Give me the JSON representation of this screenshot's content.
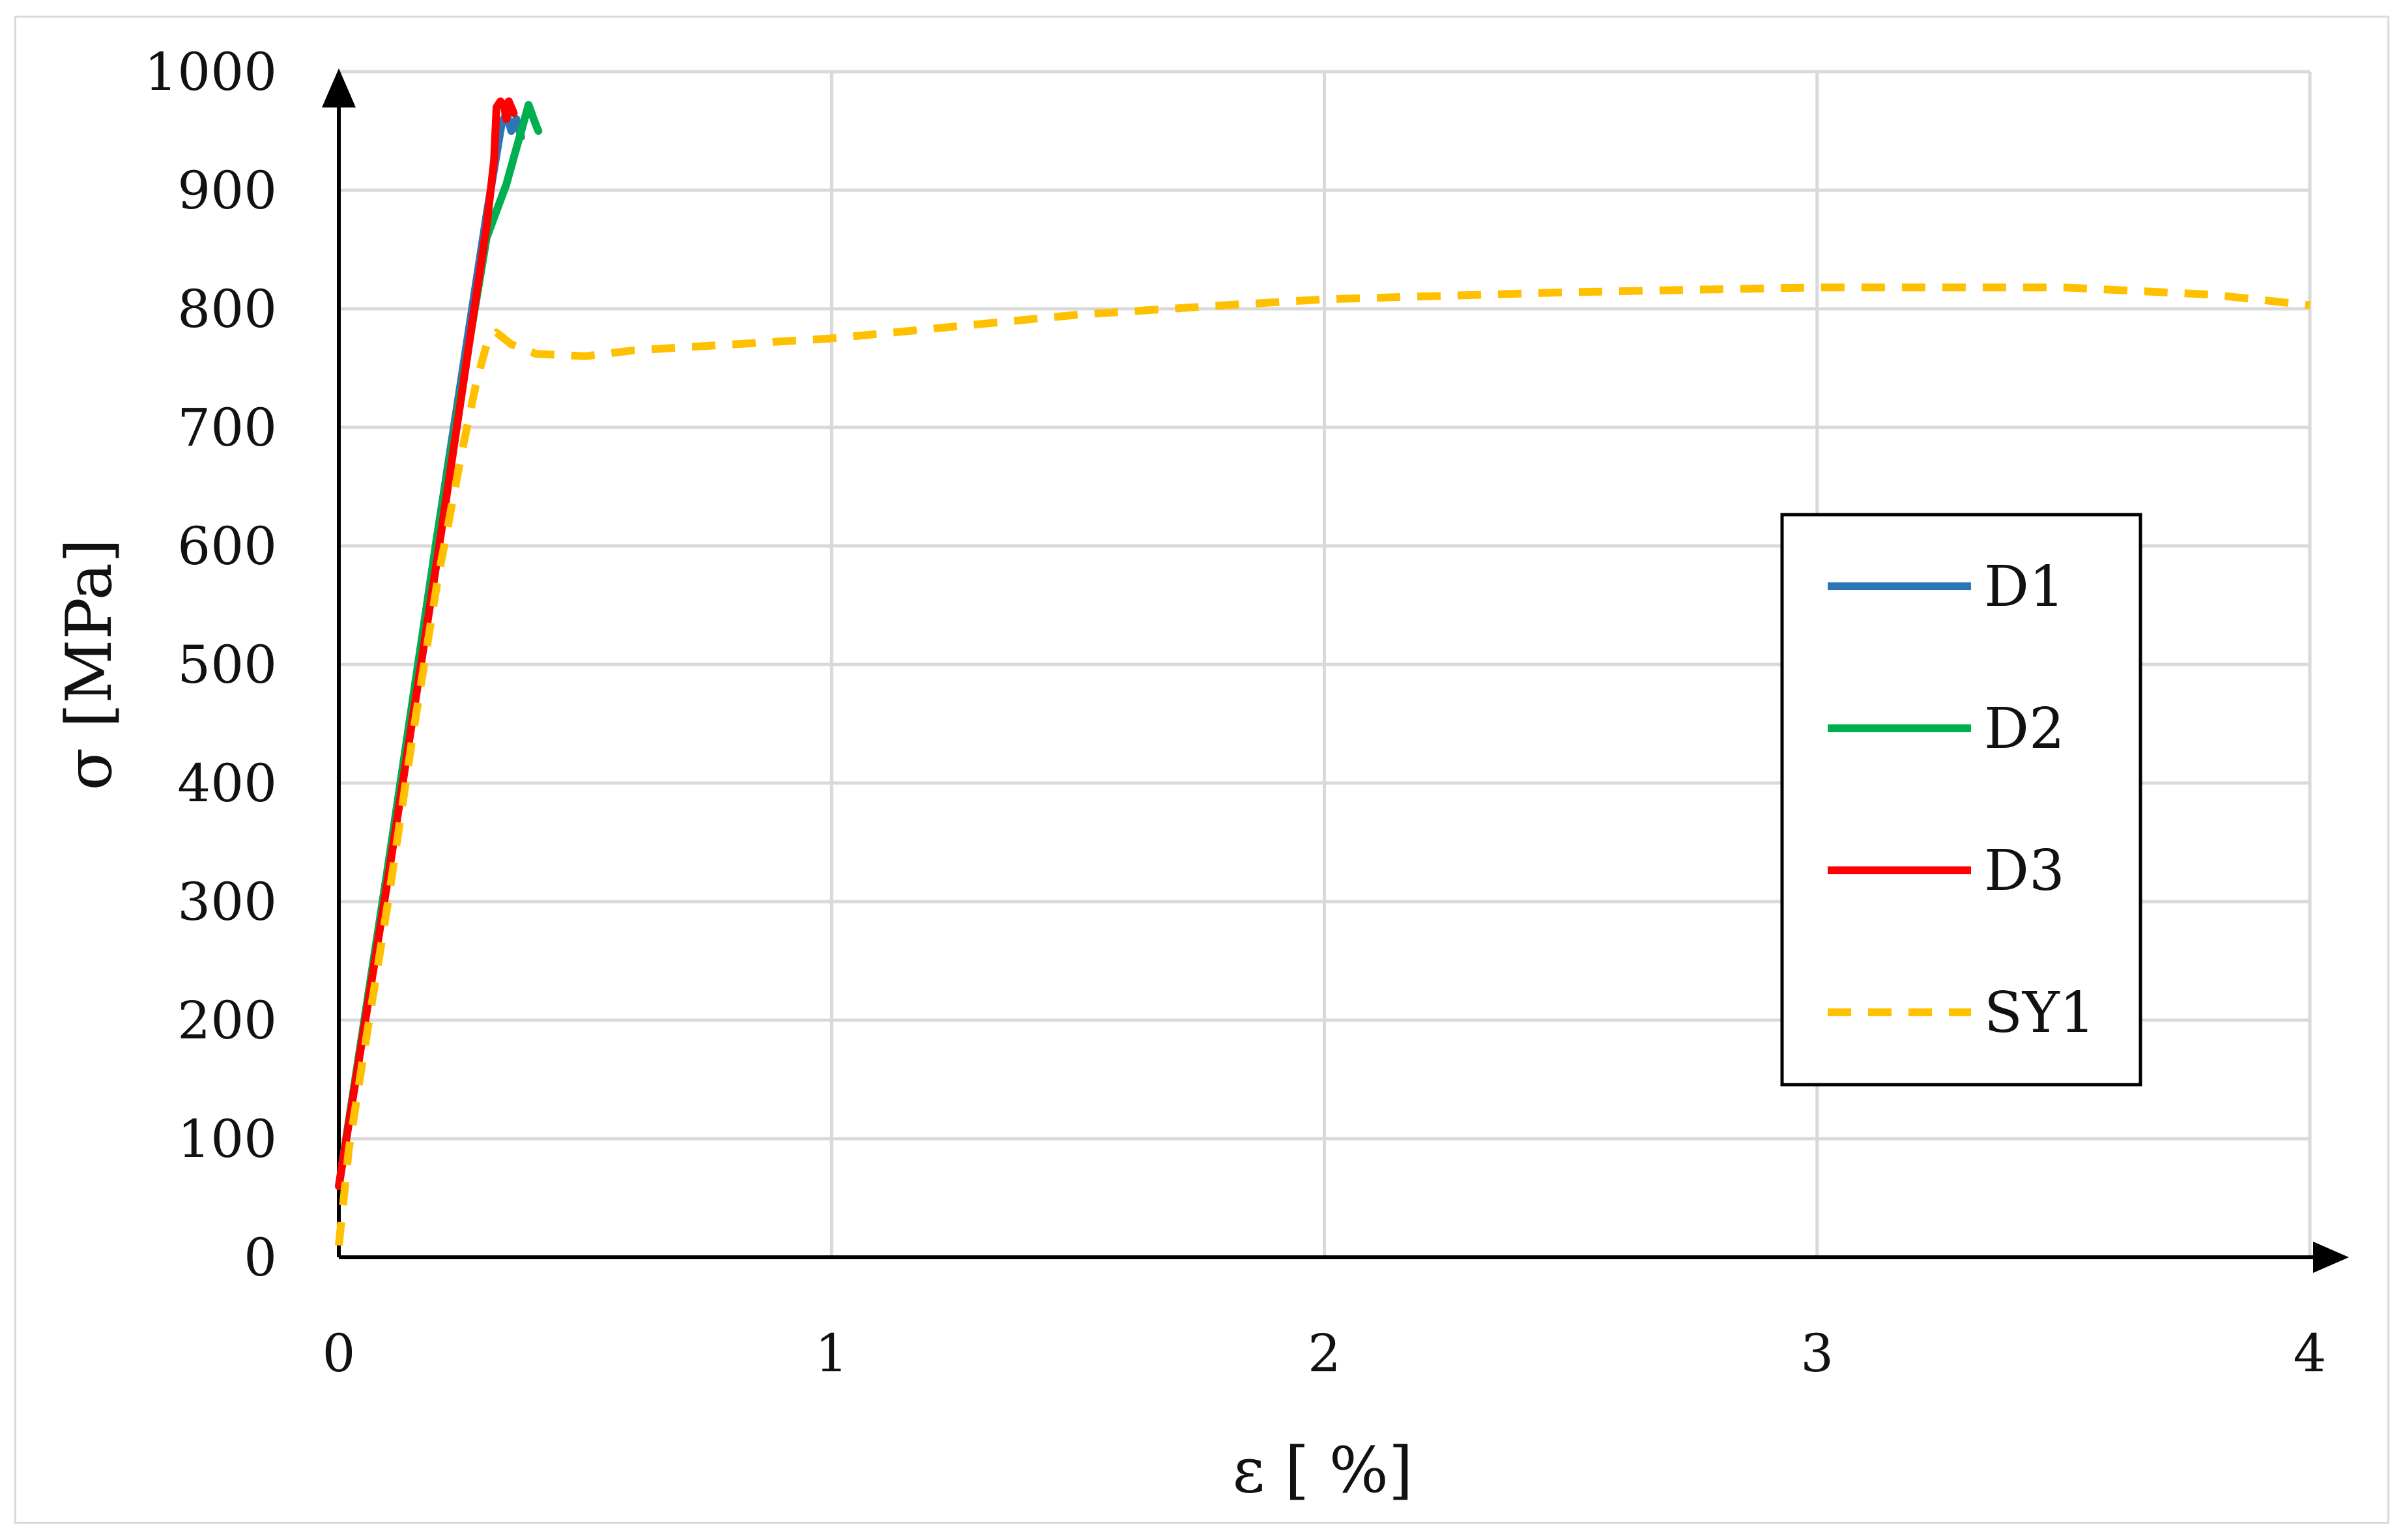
{
  "chart_data": {
    "type": "line",
    "xlabel": "ε [ %]",
    "ylabel": "σ [MPa]",
    "xlim": [
      0,
      4
    ],
    "ylim": [
      0,
      1000
    ],
    "xticks": [
      "0",
      "1",
      "2",
      "3",
      "4"
    ],
    "yticks": [
      "0",
      "100",
      "200",
      "300",
      "400",
      "500",
      "600",
      "700",
      "800",
      "900",
      "1000"
    ],
    "grid": true,
    "legend_position": "right",
    "series": [
      {
        "name": "D1",
        "color": "#2e75b6",
        "dash": "solid",
        "points": [
          [
            0,
            60
          ],
          [
            0.1,
            330
          ],
          [
            0.2,
            610
          ],
          [
            0.3,
            880
          ],
          [
            0.33,
            955
          ],
          [
            0.34,
            965
          ],
          [
            0.35,
            950
          ],
          [
            0.36,
            960
          ],
          [
            0.37,
            945
          ]
        ]
      },
      {
        "name": "D2",
        "color": "#00b050",
        "dash": "solid",
        "points": [
          [
            0,
            60
          ],
          [
            0.1,
            330
          ],
          [
            0.2,
            610
          ],
          [
            0.3,
            860
          ],
          [
            0.34,
            905
          ],
          [
            0.36,
            935
          ],
          [
            0.385,
            972
          ],
          [
            0.4,
            955
          ],
          [
            0.405,
            950
          ]
        ]
      },
      {
        "name": "D3",
        "color": "#ff0000",
        "dash": "solid",
        "points": [
          [
            0,
            60
          ],
          [
            0.1,
            320
          ],
          [
            0.2,
            590
          ],
          [
            0.3,
            870
          ],
          [
            0.315,
            925
          ],
          [
            0.32,
            970
          ],
          [
            0.328,
            975
          ],
          [
            0.335,
            972
          ],
          [
            0.34,
            960
          ],
          [
            0.345,
            975
          ],
          [
            0.355,
            965
          ]
        ]
      },
      {
        "name": "SY1",
        "color": "#ffc000",
        "dash": "dashed",
        "points": [
          [
            0,
            10
          ],
          [
            0.02,
            90
          ],
          [
            0.05,
            170
          ],
          [
            0.1,
            300
          ],
          [
            0.15,
            440
          ],
          [
            0.2,
            570
          ],
          [
            0.25,
            680
          ],
          [
            0.28,
            740
          ],
          [
            0.3,
            770
          ],
          [
            0.32,
            780
          ],
          [
            0.35,
            770
          ],
          [
            0.4,
            762
          ],
          [
            0.5,
            760
          ],
          [
            0.6,
            765
          ],
          [
            0.8,
            770
          ],
          [
            1.0,
            775
          ],
          [
            1.2,
            783
          ],
          [
            1.5,
            795
          ],
          [
            1.8,
            803
          ],
          [
            2.0,
            808
          ],
          [
            2.5,
            814
          ],
          [
            3.0,
            818
          ],
          [
            3.5,
            818
          ],
          [
            3.8,
            812
          ],
          [
            4.0,
            803
          ]
        ]
      }
    ]
  }
}
